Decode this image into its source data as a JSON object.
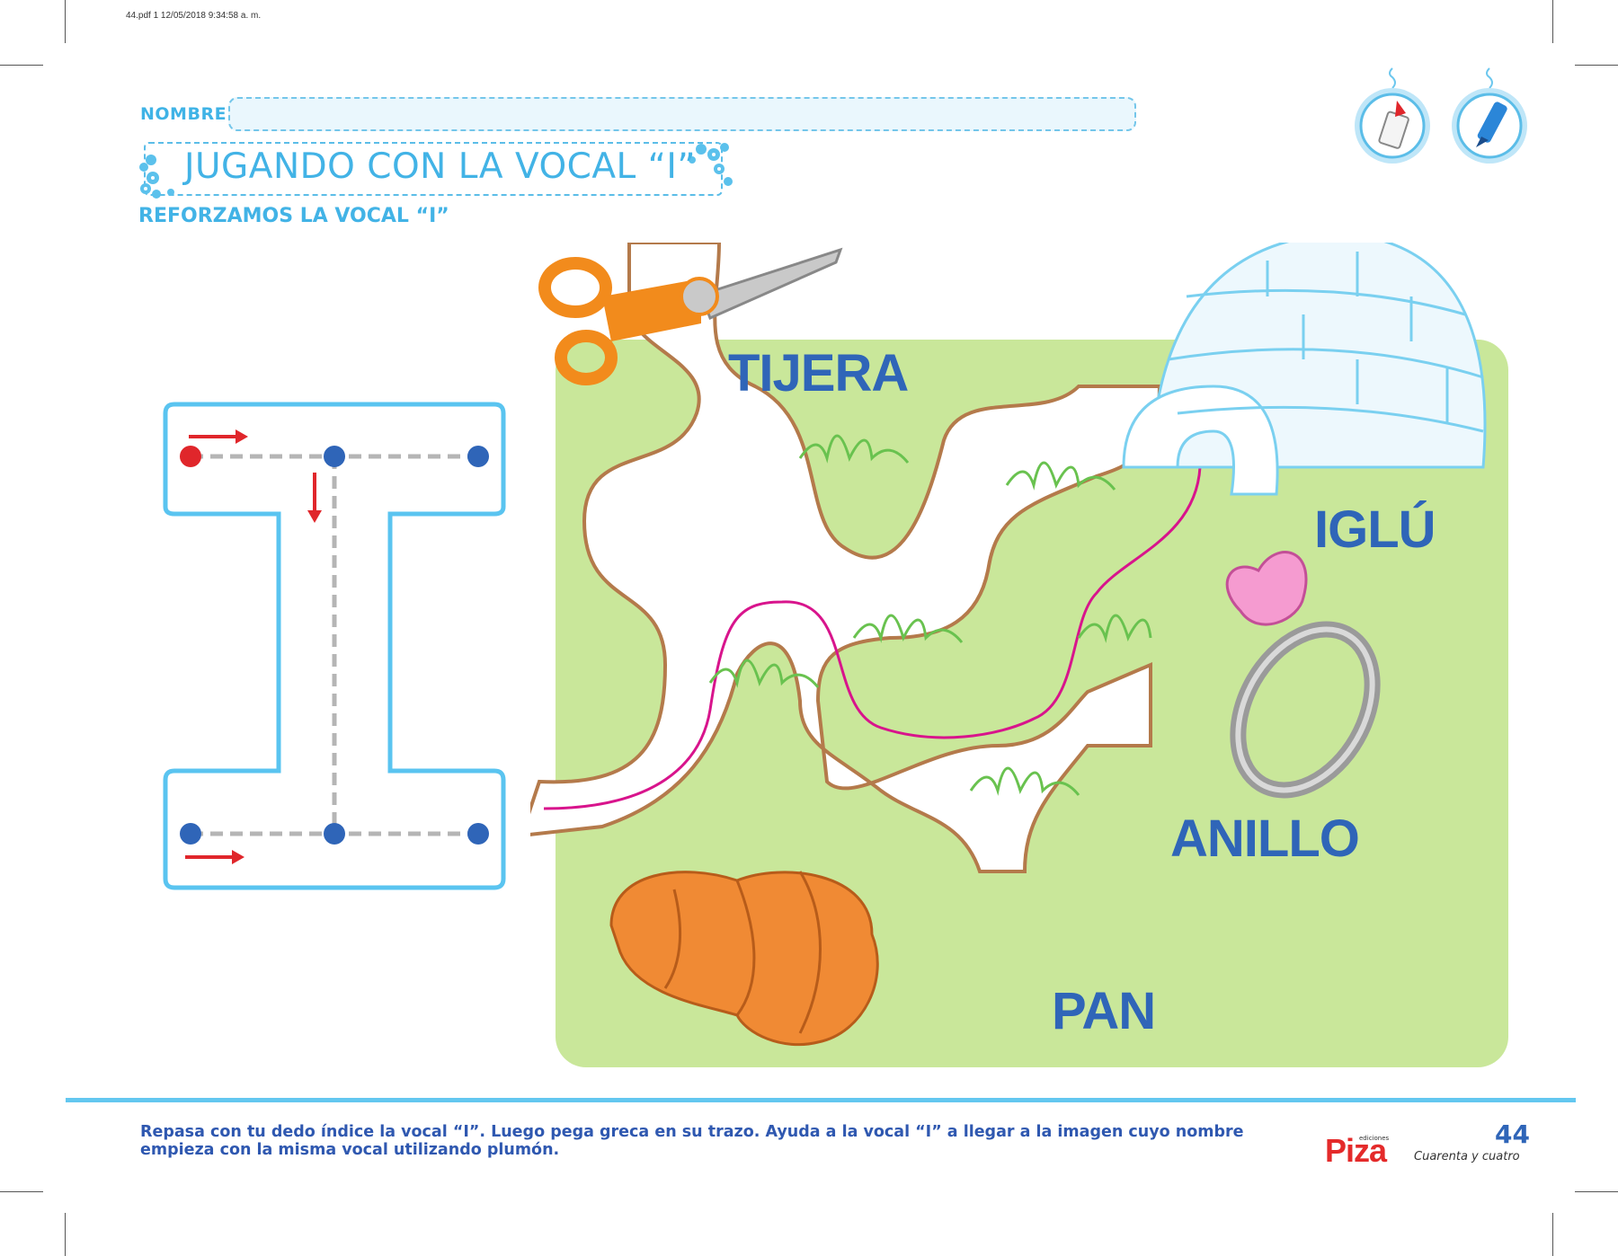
{
  "print_meta": "44.pdf   1   12/05/2018   9:34:58 a. m.",
  "header": {
    "name_label": "NOMBRE:",
    "title": "JUGANDO CON LA VOCAL “I”",
    "subtitle": "REFORZAMOS LA VOCAL “I”"
  },
  "activity_icons": [
    "glue-bottle-icon",
    "marker-pen-icon"
  ],
  "colors": {
    "accent_light_blue": "#42b3e6",
    "word_blue": "#2f65b8",
    "meadow_green": "#c9e79a",
    "path_brown": "#b47a4b",
    "trace_magenta": "#d8148c",
    "start_red": "#e0262b",
    "dot_blue": "#2f65b8"
  },
  "letter": {
    "character": "I"
  },
  "maze": {
    "words": [
      "TIJERA",
      "IGLÚ",
      "ANILLO",
      "PAN"
    ],
    "images": [
      "scissors",
      "igloo",
      "ring",
      "bread"
    ]
  },
  "footer": {
    "instructions": "Repasa con tu dedo índice la vocal “I”. Luego pega greca en su trazo. Ayuda a la vocal “I” a llegar a la imagen cuyo nombre empieza con la misma vocal utilizando plumón.",
    "brand": "Piza",
    "brand_tag": "ediciones",
    "page_number": "44",
    "page_words": "Cuarenta y cuatro"
  }
}
